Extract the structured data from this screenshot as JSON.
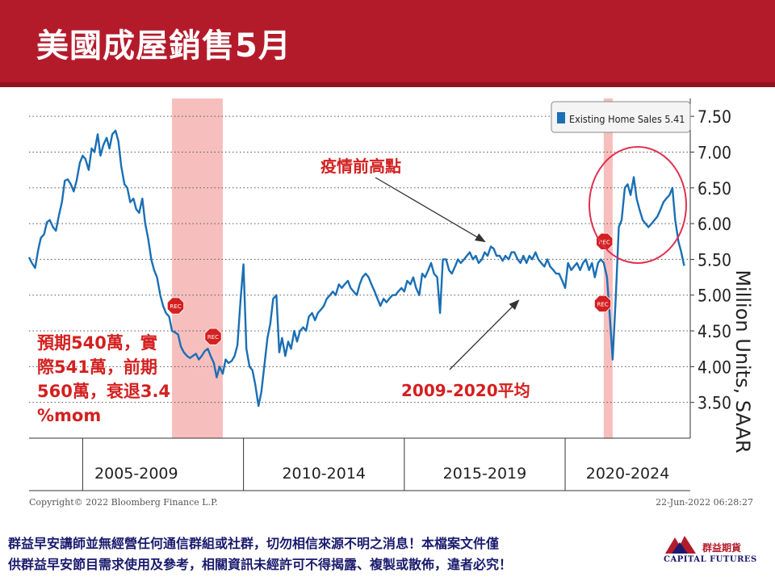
{
  "header": {
    "title": "美國成屋銷售5月"
  },
  "annotations": {
    "pre_pandemic_high": "疫情前高點",
    "average": "2009-2020平均",
    "forecast": [
      "預期540萬，實",
      "際541萬，前期",
      "560萬，衰退3.4",
      "%mom"
    ]
  },
  "legend": {
    "label": "Existing Home Sales  5.41"
  },
  "footer": {
    "copyright": "Copyright© 2022 Bloomberg Finance L.P.",
    "timestamp": "22-Jun-2022 06:28:27"
  },
  "disclaimer": {
    "line1": "群益早安講師並無經營任何通信群組或社群，切勿相信來源不明之消息！本檔案文件僅",
    "line2": "供群益早安節目需求使用及參考，相關資訊未經許可不得揭露、複製或散佈，違者必究！"
  },
  "logo": {
    "name": "群益期貨",
    "english": "CAPITAL FUTURES"
  },
  "colors": {
    "header": "#b31b2b",
    "line": "#1a6fb5",
    "recession_band": "#f4a8a8",
    "annotation": "#d42020",
    "circle": "#e03050"
  },
  "chart_data": {
    "type": "line",
    "ylabel": "Million Units, SAAR",
    "y_ticks": [
      3.5,
      4.0,
      4.5,
      5.0,
      5.5,
      6.0,
      6.5,
      7.0,
      7.5
    ],
    "y_tick_labels": [
      "3.50",
      "4.00",
      "4.50",
      "5.00",
      "5.50",
      "6.00",
      "6.50",
      "7.00",
      "7.50"
    ],
    "ylim": [
      3.0,
      7.75
    ],
    "xlim": [
      2004.0,
      2022.5
    ],
    "periods": [
      "2005-2009",
      "2010-2014",
      "2015-2019",
      "2020-2024"
    ],
    "period_boundaries": [
      2005.5,
      2010.0,
      2014.5,
      2019.0
    ],
    "recessions": [
      {
        "start": 2008.0,
        "end": 2009.42,
        "marker": "REC"
      },
      {
        "start": 2020.08,
        "end": 2020.33,
        "marker": "REC"
      }
    ],
    "recession_markers": [
      {
        "x": 2008.1,
        "y": 4.85,
        "label": "REC"
      },
      {
        "x": 2009.15,
        "y": 4.42,
        "label": "REC"
      },
      {
        "x": 2020.1,
        "y": 5.75,
        "label": "REC"
      },
      {
        "x": 2020.05,
        "y": 4.88,
        "label": "REC"
      }
    ],
    "grid": "horizontal dotted",
    "legend_placement": "top-right",
    "series": [
      {
        "name": "Existing Home Sales",
        "last_value": 5.41,
        "x": [
          2004.0,
          2004.08,
          2004.17,
          2004.25,
          2004.33,
          2004.42,
          2004.5,
          2004.58,
          2004.67,
          2004.75,
          2004.83,
          2004.92,
          2005.0,
          2005.08,
          2005.17,
          2005.25,
          2005.33,
          2005.42,
          2005.5,
          2005.58,
          2005.67,
          2005.75,
          2005.83,
          2005.92,
          2006.0,
          2006.08,
          2006.17,
          2006.25,
          2006.33,
          2006.42,
          2006.5,
          2006.58,
          2006.67,
          2006.75,
          2006.83,
          2006.92,
          2007.0,
          2007.08,
          2007.17,
          2007.25,
          2007.33,
          2007.42,
          2007.5,
          2007.58,
          2007.67,
          2007.75,
          2007.83,
          2007.92,
          2008.0,
          2008.08,
          2008.17,
          2008.25,
          2008.33,
          2008.42,
          2008.5,
          2008.58,
          2008.67,
          2008.75,
          2008.83,
          2008.92,
          2009.0,
          2009.08,
          2009.17,
          2009.25,
          2009.33,
          2009.42,
          2009.5,
          2009.58,
          2009.67,
          2009.75,
          2009.83,
          2009.92,
          2010.0,
          2010.08,
          2010.17,
          2010.25,
          2010.33,
          2010.42,
          2010.5,
          2010.58,
          2010.67,
          2010.75,
          2010.83,
          2010.92,
          2011.0,
          2011.08,
          2011.17,
          2011.25,
          2011.33,
          2011.42,
          2011.5,
          2011.58,
          2011.67,
          2011.75,
          2011.83,
          2011.92,
          2012.0,
          2012.08,
          2012.17,
          2012.25,
          2012.33,
          2012.42,
          2012.5,
          2012.58,
          2012.67,
          2012.75,
          2012.83,
          2012.92,
          2013.0,
          2013.08,
          2013.17,
          2013.25,
          2013.33,
          2013.42,
          2013.5,
          2013.58,
          2013.67,
          2013.75,
          2013.83,
          2013.92,
          2014.0,
          2014.08,
          2014.17,
          2014.25,
          2014.33,
          2014.42,
          2014.5,
          2014.58,
          2014.67,
          2014.75,
          2014.83,
          2014.92,
          2015.0,
          2015.08,
          2015.17,
          2015.25,
          2015.33,
          2015.42,
          2015.5,
          2015.58,
          2015.67,
          2015.75,
          2015.83,
          2015.92,
          2016.0,
          2016.08,
          2016.17,
          2016.25,
          2016.33,
          2016.42,
          2016.5,
          2016.58,
          2016.67,
          2016.75,
          2016.83,
          2016.92,
          2017.0,
          2017.08,
          2017.17,
          2017.25,
          2017.33,
          2017.42,
          2017.5,
          2017.58,
          2017.67,
          2017.75,
          2017.83,
          2017.92,
          2018.0,
          2018.08,
          2018.17,
          2018.25,
          2018.33,
          2018.42,
          2018.5,
          2018.58,
          2018.67,
          2018.75,
          2018.83,
          2018.92,
          2019.0,
          2019.08,
          2019.17,
          2019.25,
          2019.33,
          2019.42,
          2019.5,
          2019.58,
          2019.67,
          2019.75,
          2019.83,
          2019.92,
          2020.0,
          2020.08,
          2020.17,
          2020.25,
          2020.33,
          2020.42,
          2020.5,
          2020.58,
          2020.67,
          2020.75,
          2020.83,
          2020.92,
          2021.0,
          2021.08,
          2021.17,
          2021.25,
          2021.33,
          2021.42,
          2021.5,
          2021.58,
          2021.67,
          2021.75,
          2021.83,
          2021.92,
          2022.0,
          2022.08,
          2022.17,
          2022.25,
          2022.33
        ],
        "values": [
          5.53,
          5.45,
          5.38,
          5.62,
          5.8,
          5.85,
          6.02,
          6.05,
          5.95,
          5.9,
          6.1,
          6.3,
          6.6,
          6.62,
          6.55,
          6.45,
          6.6,
          6.85,
          6.95,
          6.9,
          6.75,
          7.05,
          7.0,
          7.25,
          6.95,
          7.1,
          7.2,
          7.05,
          7.25,
          7.3,
          7.15,
          6.8,
          6.55,
          6.5,
          6.3,
          6.35,
          6.2,
          6.15,
          6.35,
          6.0,
          5.8,
          5.5,
          5.35,
          5.25,
          5.0,
          4.85,
          4.75,
          4.7,
          4.5,
          4.48,
          4.45,
          4.28,
          4.2,
          4.15,
          4.12,
          4.15,
          4.18,
          4.1,
          4.15,
          4.22,
          4.25,
          4.15,
          4.05,
          3.85,
          4.0,
          3.9,
          4.1,
          4.05,
          4.08,
          4.15,
          4.3,
          4.95,
          5.43,
          4.25,
          4.0,
          3.95,
          3.75,
          3.45,
          3.65,
          4.0,
          4.4,
          4.6,
          4.95,
          5.0,
          4.2,
          4.4,
          4.15,
          4.35,
          4.25,
          4.5,
          4.35,
          4.5,
          4.55,
          4.5,
          4.7,
          4.75,
          4.65,
          4.75,
          4.8,
          4.85,
          4.95,
          5.0,
          5.05,
          5.0,
          5.15,
          5.1,
          5.15,
          5.2,
          5.1,
          5.05,
          5.0,
          5.15,
          5.25,
          5.3,
          5.25,
          5.15,
          5.05,
          4.95,
          4.85,
          4.95,
          4.9,
          4.95,
          5.0,
          5.0,
          5.05,
          5.1,
          5.05,
          5.2,
          5.15,
          5.25,
          5.1,
          5.0,
          5.3,
          5.25,
          5.35,
          5.45,
          5.3,
          5.25,
          4.75,
          5.5,
          5.5,
          5.35,
          5.3,
          5.4,
          5.5,
          5.45,
          5.5,
          5.55,
          5.6,
          5.5,
          5.55,
          5.45,
          5.5,
          5.6,
          5.55,
          5.68,
          5.65,
          5.55,
          5.55,
          5.48,
          5.55,
          5.5,
          5.6,
          5.6,
          5.5,
          5.45,
          5.55,
          5.45,
          5.55,
          5.5,
          5.6,
          5.5,
          5.45,
          5.4,
          5.5,
          5.4,
          5.35,
          5.3,
          5.3,
          5.2,
          5.1,
          5.45,
          5.35,
          5.4,
          5.45,
          5.35,
          5.45,
          5.5,
          5.35,
          5.45,
          5.25,
          5.45,
          5.5,
          5.45,
          5.25,
          4.7,
          4.1,
          5.0,
          5.95,
          6.05,
          6.5,
          6.55,
          6.4,
          6.65,
          6.35,
          6.2,
          6.05,
          6.0,
          5.95,
          6.0,
          6.05,
          6.1,
          6.2,
          6.3,
          6.35,
          6.4,
          6.5,
          6.05,
          5.75,
          5.6,
          5.41
        ]
      }
    ],
    "annotations": [
      {
        "text": "疫情前高點",
        "target_x": 2016.8,
        "target_y": 5.68
      },
      {
        "text": "2009-2020平均",
        "target_x": 2017.7,
        "target_y": 4.95
      }
    ]
  }
}
